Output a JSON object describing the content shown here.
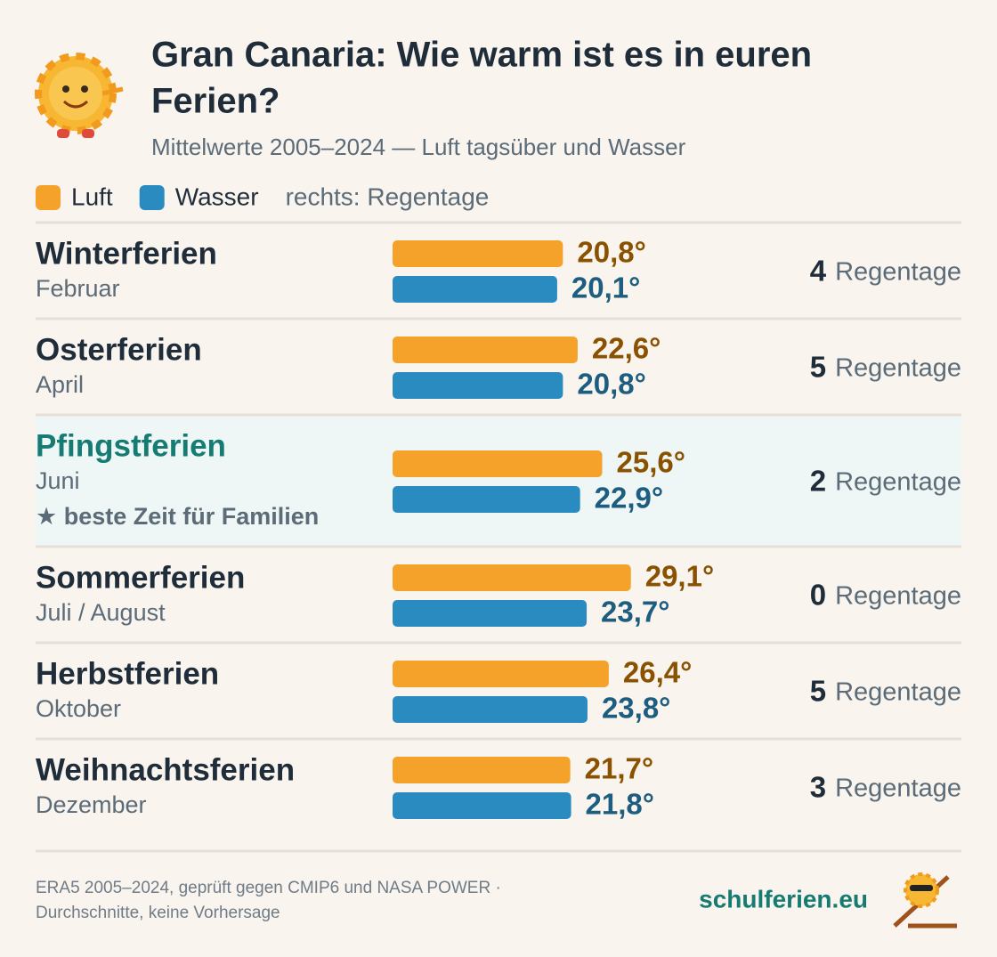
{
  "chart_data": {
    "type": "bar",
    "title_lines": [
      "Gran Canaria: Wie warm ist es in euren",
      "Ferien?"
    ],
    "subtitle": "Mittelwerte 2005–2024 — Luft tagsüber und Wasser",
    "legend_note": "rechts: Regentage",
    "categories": [
      "Winterferien",
      "Osterferien",
      "Pfingstferien",
      "Sommerferien",
      "Herbstferien",
      "Weihnachtsferien"
    ],
    "sublabels": [
      "Februar",
      "April",
      "Juni",
      "Juli / August",
      "Oktober",
      "Dezember"
    ],
    "notes": [
      null,
      null,
      "★ beste Zeit für Familien",
      null,
      null,
      null
    ],
    "series": [
      {
        "name": "Luft",
        "color": "#f4a22a",
        "label_color": "#8a5200",
        "values": [
          20.8,
          22.6,
          25.6,
          29.1,
          26.4,
          21.7
        ],
        "value_labels": [
          "20,8°",
          "22,6°",
          "25,6°",
          "29,1°",
          "26,4°",
          "21,7°"
        ]
      },
      {
        "name": "Wasser",
        "color": "#2a8bc0",
        "label_color": "#1d5e80",
        "values": [
          20.1,
          20.8,
          22.9,
          23.7,
          23.8,
          21.8
        ],
        "value_labels": [
          "20,1°",
          "20,8°",
          "22,9°",
          "23,7°",
          "23,8°",
          "21,8°"
        ]
      }
    ],
    "rain_days": [
      4,
      5,
      2,
      0,
      5,
      3
    ],
    "rain_unit": "Regentage",
    "source_lines": [
      "ERA5 2005–2024, geprüft gegen CMIP6 und NASA POWER ·",
      "Durchschnitte, keine Vorhersage"
    ],
    "brand": "schulferien.eu"
  }
}
